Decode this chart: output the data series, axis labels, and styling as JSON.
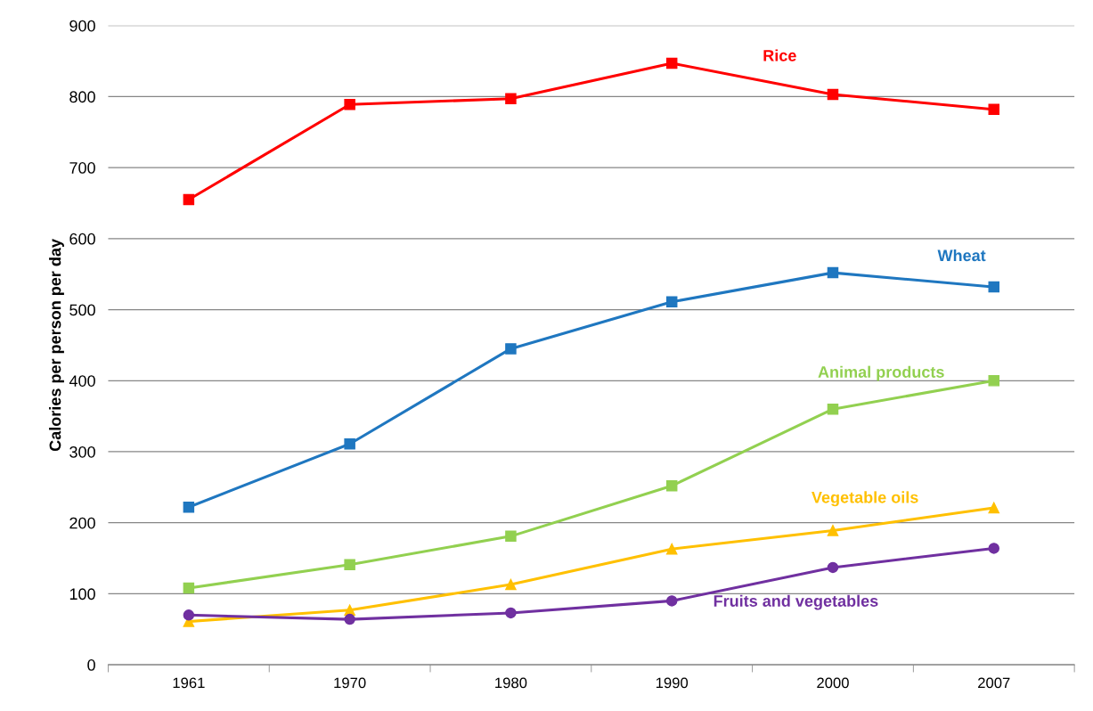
{
  "chart_data": {
    "type": "line",
    "ylabel": "Calories per person per day",
    "categories": [
      "1961",
      "1970",
      "1980",
      "1990",
      "2000",
      "2007"
    ],
    "series": [
      {
        "name": "Rice",
        "color": "#ff0000",
        "marker": "square",
        "values": [
          655,
          789,
          797,
          847,
          803,
          782
        ]
      },
      {
        "name": "Wheat",
        "color": "#1f77c0",
        "marker": "square",
        "values": [
          222,
          311,
          445,
          511,
          552,
          532
        ]
      },
      {
        "name": "Animal products",
        "color": "#92d050",
        "marker": "square",
        "values": [
          108,
          141,
          181,
          252,
          360,
          400
        ]
      },
      {
        "name": "Vegetable oils",
        "color": "#ffc000",
        "marker": "triangle",
        "values": [
          61,
          77,
          113,
          163,
          189,
          221
        ]
      },
      {
        "name": "Fruits and vegetables",
        "color": "#7030a0",
        "marker": "circle",
        "values": [
          70,
          64,
          73,
          90,
          137,
          164
        ]
      }
    ],
    "ylim": [
      0,
      900
    ],
    "yticks": [
      0,
      100,
      200,
      300,
      400,
      500,
      600,
      700,
      800,
      900
    ],
    "grid": "y",
    "legend": false
  }
}
